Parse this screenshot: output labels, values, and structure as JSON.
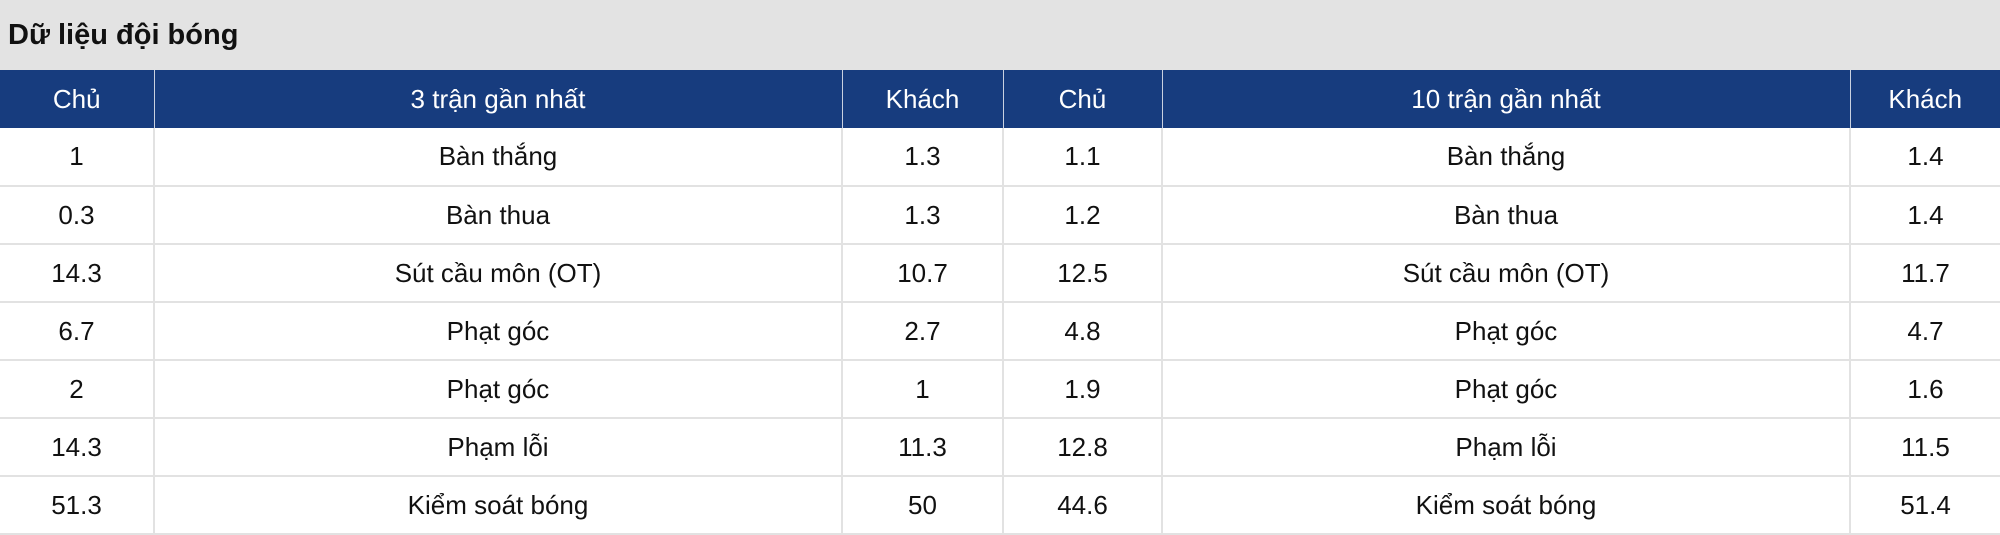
{
  "title": "Dữ liệu đội bóng",
  "header": [
    "Chủ",
    "3 trận gần nhất",
    "Khách",
    "Chủ",
    "10 trận gần nhất",
    "Khách"
  ],
  "colors": {
    "header_bg": "#173c7e",
    "title_bg": "#e3e3e3"
  },
  "rows": [
    [
      "1",
      "Bàn thắng",
      "1.3",
      "1.1",
      "Bàn thắng",
      "1.4"
    ],
    [
      "0.3",
      "Bàn thua",
      "1.3",
      "1.2",
      "Bàn thua",
      "1.4"
    ],
    [
      "14.3",
      "Sút cầu môn (OT)",
      "10.7",
      "12.5",
      "Sút cầu môn (OT)",
      "11.7"
    ],
    [
      "6.7",
      "Phạt góc",
      "2.7",
      "4.8",
      "Phạt góc",
      "4.7"
    ],
    [
      "2",
      "Phạt góc",
      "1",
      "1.9",
      "Phạt góc",
      "1.6"
    ],
    [
      "14.3",
      "Phạm lỗi",
      "11.3",
      "12.8",
      "Phạm lỗi",
      "11.5"
    ],
    [
      "51.3",
      "Kiểm soát bóng",
      "50",
      "44.6",
      "Kiểm soát bóng",
      "51.4"
    ]
  ]
}
